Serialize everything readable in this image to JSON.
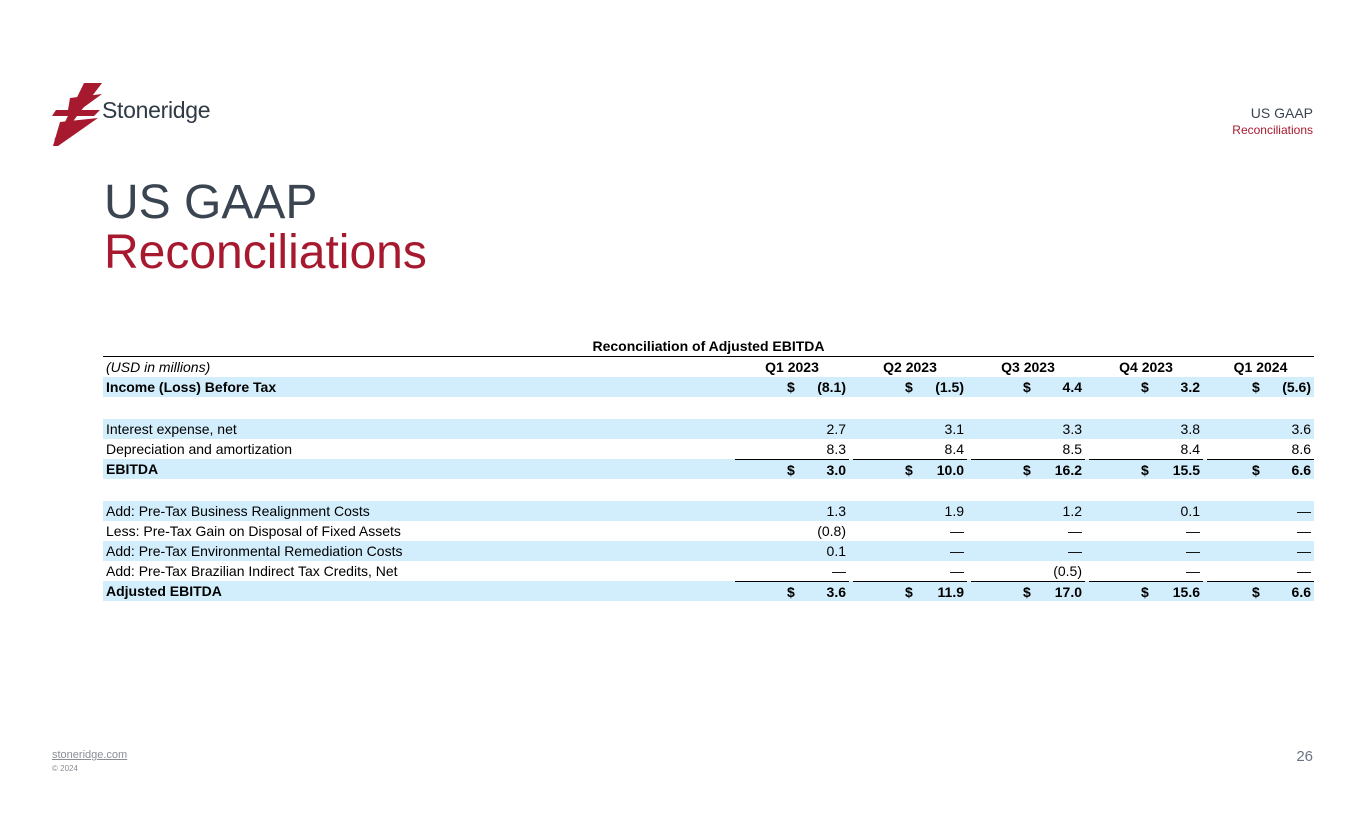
{
  "brand": {
    "name": "Stoneridge",
    "accent": "#a6192e",
    "slate": "#3b4552",
    "row_shade": "#d2edfb"
  },
  "header": {
    "line1": "US GAAP",
    "line2": "Reconciliations"
  },
  "title": {
    "line1": "US GAAP",
    "line2": "Reconciliations"
  },
  "table": {
    "title": "Reconciliation of Adjusted EBITDA",
    "unit_label": "(USD in millions)",
    "columns": [
      "Q1 2023",
      "Q2 2023",
      "Q3 2023",
      "Q4 2023",
      "Q1 2024"
    ],
    "rows": [
      {
        "label": "Income (Loss) Before Tax",
        "dollar": [
          "$",
          "$",
          "$",
          "$",
          "$"
        ],
        "values": [
          "(8.1)",
          "(1.5)",
          "4.4",
          "3.2",
          "(5.6)"
        ]
      },
      {
        "label": "Interest expense, net",
        "values": [
          "2.7",
          "3.1",
          "3.3",
          "3.8",
          "3.6"
        ]
      },
      {
        "label": "Depreciation and amortization",
        "values": [
          "8.3",
          "8.4",
          "8.5",
          "8.4",
          "8.6"
        ]
      },
      {
        "label": "EBITDA",
        "dollar": [
          "$",
          "$",
          "$",
          "$",
          "$"
        ],
        "values": [
          "3.0",
          "10.0",
          "16.2",
          "15.5",
          "6.6"
        ]
      },
      {
        "label": "Add: Pre-Tax Business Realignment Costs",
        "values": [
          "1.3",
          "1.9",
          "1.2",
          "0.1",
          "—"
        ]
      },
      {
        "label": "Less: Pre-Tax Gain on Disposal of Fixed Assets",
        "values": [
          "(0.8)",
          "—",
          "—",
          "—",
          "—"
        ]
      },
      {
        "label": "Add: Pre-Tax Environmental Remediation Costs",
        "values": [
          "0.1",
          "—",
          "—",
          "—",
          "—"
        ]
      },
      {
        "label": "Add: Pre-Tax Brazilian Indirect Tax Credits, Net",
        "values": [
          "—",
          "—",
          "(0.5)",
          "—",
          "—"
        ]
      },
      {
        "label": "Adjusted EBITDA",
        "dollar": [
          "$",
          "$",
          "$",
          "$",
          "$"
        ],
        "values": [
          "3.6",
          "11.9",
          "17.0",
          "15.6",
          "6.6"
        ]
      }
    ]
  },
  "footer": {
    "link": "stoneridge.com",
    "copyright": "© 2024",
    "page": "26"
  }
}
